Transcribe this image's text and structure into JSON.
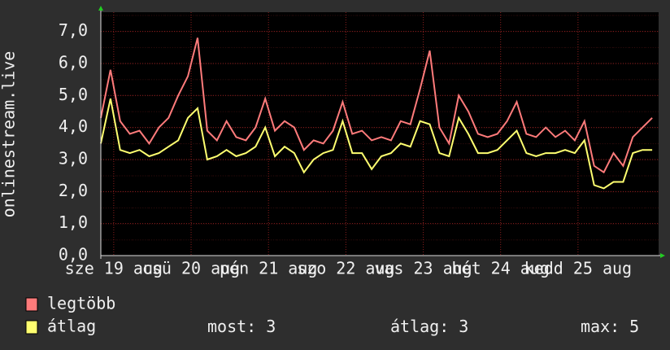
{
  "chart_data": {
    "type": "line",
    "ylabel": "onlinestream.live",
    "x": [
      0,
      3,
      6,
      9,
      12,
      15,
      18,
      21,
      24,
      27,
      30,
      33,
      36,
      39,
      42,
      45,
      48,
      51,
      54,
      57,
      60,
      63,
      66,
      69,
      72,
      75,
      78,
      81,
      84,
      87,
      90,
      93,
      96,
      99,
      102,
      105,
      108,
      111,
      114,
      117,
      120,
      123,
      126,
      129,
      132,
      135,
      138,
      141,
      144,
      147,
      150,
      153,
      156,
      159,
      162,
      165,
      168,
      171
    ],
    "series": [
      {
        "name": "legtöbb",
        "color": "#ff7b7b",
        "values": [
          4.3,
          5.8,
          4.2,
          3.8,
          3.9,
          3.5,
          4.0,
          4.3,
          5.0,
          5.6,
          6.8,
          3.9,
          3.6,
          4.2,
          3.7,
          3.6,
          4.0,
          4.9,
          3.9,
          4.2,
          4.0,
          3.3,
          3.6,
          3.5,
          3.9,
          4.8,
          3.8,
          3.9,
          3.6,
          3.7,
          3.6,
          4.2,
          4.1,
          5.2,
          6.4,
          4.0,
          3.5,
          5.0,
          4.5,
          3.8,
          3.7,
          3.8,
          4.2,
          4.8,
          3.8,
          3.7,
          4.0,
          3.7,
          3.9,
          3.6,
          4.2,
          2.8,
          2.6,
          3.2,
          2.8,
          3.7,
          4.0,
          4.3
        ]
      },
      {
        "name": "átlag",
        "color": "#ffff70",
        "values": [
          3.5,
          4.9,
          3.3,
          3.2,
          3.3,
          3.1,
          3.2,
          3.4,
          3.6,
          4.3,
          4.6,
          3.0,
          3.1,
          3.3,
          3.1,
          3.2,
          3.4,
          4.0,
          3.1,
          3.4,
          3.2,
          2.6,
          3.0,
          3.2,
          3.3,
          4.2,
          3.2,
          3.2,
          2.7,
          3.1,
          3.2,
          3.5,
          3.4,
          4.2,
          4.1,
          3.2,
          3.1,
          4.3,
          3.8,
          3.2,
          3.2,
          3.3,
          3.6,
          3.9,
          3.2,
          3.1,
          3.2,
          3.2,
          3.3,
          3.2,
          3.6,
          2.2,
          2.1,
          2.3,
          2.3,
          3.2,
          3.3,
          3.3
        ]
      }
    ],
    "xlim": [
      0,
      173
    ],
    "xticks": [
      {
        "value": 4,
        "label": "sze 19 aug"
      },
      {
        "value": 28,
        "label": "csü 20 aug"
      },
      {
        "value": 52,
        "label": "pén 21 aug"
      },
      {
        "value": 76,
        "label": "szo 22 aug"
      },
      {
        "value": 100,
        "label": "vas 23 aug"
      },
      {
        "value": 124,
        "label": "hét 24 aug"
      },
      {
        "value": 148,
        "label": "kedd 25 aug"
      }
    ],
    "ylim": [
      0,
      7.6
    ],
    "yticks": [
      {
        "value": 0,
        "label": "0,0"
      },
      {
        "value": 1,
        "label": "1,0"
      },
      {
        "value": 2,
        "label": "2,0"
      },
      {
        "value": 3,
        "label": "3,0"
      },
      {
        "value": 4,
        "label": "4,0"
      },
      {
        "value": 5,
        "label": "5,0"
      },
      {
        "value": 6,
        "label": "6,0"
      },
      {
        "value": 7,
        "label": "7,0"
      }
    ],
    "grid": true,
    "stats": [
      {
        "label": "most:",
        "value": 3
      },
      {
        "label": "átlag:",
        "value": 3
      },
      {
        "label": "max:",
        "value": 5
      }
    ]
  }
}
